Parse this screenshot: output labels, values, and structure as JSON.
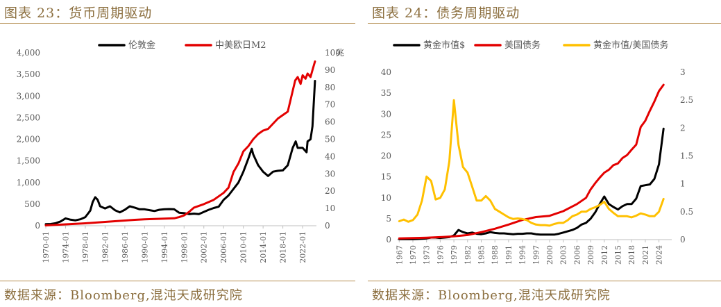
{
  "figures": [
    {
      "title": "图表 23：货币周期驱动",
      "source": "数据来源：Bloomberg,混沌天成研究院"
    },
    {
      "title": "图表 24：债务周期驱动",
      "source": "数据来源：Bloomberg,混沌天成研究院"
    }
  ],
  "chart_data": [
    {
      "type": "line",
      "title": "",
      "xlabel": "",
      "ylabel": "",
      "y2label": "",
      "xlim": [
        1970.0,
        2024.8
      ],
      "x_ticks": [
        "1970-01",
        "1974-01",
        "1978-01",
        "1982-01",
        "1986-01",
        "1990-01",
        "1994-01",
        "1998-01",
        "2002-01",
        "2006-01",
        "2010-01",
        "2014-01",
        "2018-01",
        "2022-01"
      ],
      "x_tick_values": [
        1970,
        1974,
        1978,
        1982,
        1986,
        1990,
        1994,
        1998,
        2002,
        2006,
        2010,
        2014,
        2018,
        2022
      ],
      "y_left": {
        "min": 0,
        "max": 4000,
        "ticks": [
          "0",
          "500",
          "1,000",
          "1,500",
          "2,000",
          "2,500",
          "3,000",
          "3,500",
          "4,000"
        ],
        "tick_values": [
          0,
          500,
          1000,
          1500,
          2000,
          2500,
          3000,
          3500,
          4000
        ]
      },
      "y_right": {
        "min": 0,
        "max": 100,
        "ticks": [
          "0",
          "10",
          "20",
          "30",
          "40",
          "50",
          "60",
          "70",
          "80",
          "90",
          "100"
        ],
        "tick_values": [
          0,
          10,
          20,
          30,
          40,
          50,
          60,
          70,
          80,
          90,
          100
        ],
        "unit": "兆"
      },
      "legend_position": "top",
      "grid": false,
      "series": [
        {
          "name": "伦敦金",
          "axis": "left",
          "color": "#000000",
          "x": [
            1970,
            1971,
            1972,
            1973,
            1974,
            1975,
            1976,
            1977,
            1978,
            1979,
            1979.5,
            1980,
            1980.5,
            1981,
            1982,
            1983,
            1984,
            1985,
            1986,
            1987,
            1988,
            1989,
            1990,
            1991,
            1992,
            1993,
            1994,
            1995,
            1996,
            1997,
            1998,
            1999,
            2000,
            2001,
            2002,
            2003,
            2004,
            2005,
            2006,
            2007,
            2008,
            2009,
            2010,
            2011,
            2011.7,
            2012,
            2013,
            2014,
            2015,
            2016,
            2017,
            2018,
            2019,
            2020,
            2020.6,
            2021,
            2022,
            2022.8,
            2023,
            2023.6,
            2024,
            2024.5
          ],
          "y": [
            35,
            40,
            60,
            100,
            170,
            140,
            125,
            150,
            200,
            350,
            550,
            660,
            600,
            450,
            400,
            450,
            360,
            310,
            370,
            450,
            420,
            380,
            380,
            360,
            340,
            370,
            380,
            385,
            380,
            300,
            290,
            270,
            280,
            270,
            320,
            370,
            410,
            440,
            600,
            700,
            850,
            1000,
            1250,
            1550,
            1780,
            1650,
            1400,
            1250,
            1150,
            1250,
            1270,
            1280,
            1400,
            1800,
            1950,
            1800,
            1800,
            1700,
            1950,
            2000,
            2300,
            3350
          ]
        },
        {
          "name": "中美欧日M2",
          "axis": "right",
          "color": "#e30000",
          "x": [
            1970,
            1972,
            1974,
            1976,
            1978,
            1980,
            1982,
            1984,
            1986,
            1988,
            1990,
            1992,
            1994,
            1996,
            1997,
            1998,
            1999,
            2000,
            2002,
            2004,
            2006,
            2007,
            2008,
            2009,
            2010,
            2011,
            2012,
            2013,
            2014,
            2015,
            2016,
            2017,
            2018,
            2019,
            2020,
            2020.5,
            2021,
            2021.6,
            2022,
            2022.6,
            2023,
            2023.6,
            2024,
            2024.5
          ],
          "y": [
            0.2,
            0.5,
            0.8,
            1.1,
            1.4,
            1.8,
            2.2,
            2.6,
            3.0,
            3.4,
            3.7,
            3.9,
            4.1,
            4.3,
            5.0,
            6.0,
            8.0,
            10.5,
            12.5,
            15.0,
            19.0,
            22.0,
            31.0,
            36.0,
            43.0,
            46.0,
            50.0,
            53.0,
            55.0,
            56.0,
            59.0,
            62.0,
            64.0,
            66.0,
            78.0,
            84.0,
            86.0,
            82.0,
            87.0,
            85.0,
            88.0,
            86.0,
            90.0,
            95.0
          ]
        }
      ]
    },
    {
      "type": "line",
      "title": "",
      "xlabel": "",
      "ylabel": "",
      "y2label": "",
      "xlim": [
        1966.5,
        2026.8
      ],
      "x_ticks": [
        "1967",
        "1970",
        "1973",
        "1976",
        "1979",
        "1982",
        "1985",
        "1988",
        "1991",
        "1994",
        "1997",
        "2000",
        "2003",
        "2006",
        "2009",
        "2012",
        "2015",
        "2018",
        "2021",
        "2024"
      ],
      "x_tick_values": [
        1967,
        1970,
        1973,
        1976,
        1979,
        1982,
        1985,
        1988,
        1991,
        1994,
        1997,
        2000,
        2003,
        2006,
        2009,
        2012,
        2015,
        2018,
        2021,
        2024
      ],
      "y_left": {
        "min": 0,
        "max": 40,
        "ticks": [
          "0",
          "5",
          "10",
          "15",
          "20",
          "25",
          "30",
          "35",
          "40"
        ],
        "tick_values": [
          0,
          5,
          10,
          15,
          20,
          25,
          30,
          35,
          40
        ]
      },
      "y_right": {
        "min": 0,
        "max": 3,
        "ticks": [
          "0",
          "0.5",
          "1",
          "1.5",
          "2",
          "2.5",
          "3"
        ],
        "tick_values": [
          0,
          0.5,
          1,
          1.5,
          2,
          2.5,
          3
        ]
      },
      "legend_position": "top",
      "grid": false,
      "series": [
        {
          "name": "黄金市值$",
          "axis": "left",
          "color": "#000000",
          "x": [
            1967,
            1968,
            1969,
            1970,
            1971,
            1972,
            1973,
            1974,
            1975,
            1976,
            1977,
            1978,
            1979,
            1980,
            1981,
            1982,
            1983,
            1984,
            1985,
            1986,
            1987,
            1988,
            1989,
            1990,
            1991,
            1992,
            1993,
            1994,
            1995,
            1996,
            1997,
            1998,
            1999,
            2000,
            2001,
            2002,
            2003,
            2004,
            2005,
            2006,
            2007,
            2008,
            2009,
            2010,
            2011,
            2012,
            2013,
            2014,
            2015,
            2016,
            2017,
            2018,
            2019,
            2020,
            2021,
            2022,
            2023,
            2024,
            2025
          ],
          "y": [
            0.1,
            0.1,
            0.1,
            0.1,
            0.15,
            0.2,
            0.3,
            0.5,
            0.5,
            0.4,
            0.5,
            0.6,
            1.0,
            2.3,
            1.8,
            1.5,
            1.7,
            1.4,
            1.3,
            1.5,
            1.8,
            1.6,
            1.5,
            1.5,
            1.4,
            1.3,
            1.4,
            1.4,
            1.5,
            1.5,
            1.3,
            1.2,
            1.2,
            1.2,
            1.2,
            1.4,
            1.7,
            2.0,
            2.3,
            2.8,
            3.6,
            4.0,
            5.0,
            6.5,
            8.5,
            10.3,
            8.5,
            7.8,
            7.2,
            8.0,
            8.5,
            8.5,
            9.8,
            12.8,
            13.0,
            13.2,
            14.5,
            18.0,
            26.5
          ]
        },
        {
          "name": "美国债务",
          "axis": "left",
          "color": "#e30000",
          "x": [
            1967,
            1970,
            1973,
            1976,
            1979,
            1982,
            1985,
            1988,
            1991,
            1994,
            1997,
            2000,
            2003,
            2006,
            2008,
            2009,
            2010,
            2011,
            2012,
            2013,
            2014,
            2015,
            2016,
            2017,
            2018,
            2019,
            2020,
            2021,
            2022,
            2023,
            2024,
            2025
          ],
          "y": [
            0.3,
            0.37,
            0.45,
            0.6,
            0.8,
            1.1,
            1.8,
            2.6,
            3.6,
            4.7,
            5.4,
            5.7,
            6.8,
            8.5,
            10.0,
            12.0,
            13.5,
            14.8,
            16.0,
            16.7,
            17.8,
            18.2,
            19.5,
            20.2,
            21.5,
            22.7,
            26.9,
            28.4,
            30.8,
            33.0,
            35.5,
            37.0
          ]
        },
        {
          "name": "黄金市值/美国债务",
          "axis": "right",
          "color": "#ffc000",
          "x": [
            1967,
            1968,
            1969,
            1970,
            1971,
            1972,
            1973,
            1974,
            1975,
            1976,
            1977,
            1978,
            1979,
            1980,
            1981,
            1982,
            1983,
            1984,
            1985,
            1986,
            1987,
            1988,
            1989,
            1990,
            1991,
            1992,
            1993,
            1994,
            1995,
            1996,
            1997,
            1998,
            1999,
            2000,
            2001,
            2002,
            2003,
            2004,
            2005,
            2006,
            2007,
            2008,
            2009,
            2010,
            2011,
            2012,
            2013,
            2014,
            2015,
            2016,
            2017,
            2018,
            2019,
            2020,
            2021,
            2022,
            2023,
            2024,
            2025
          ],
          "y": [
            0.33,
            0.36,
            0.32,
            0.35,
            0.45,
            0.7,
            1.13,
            1.05,
            0.72,
            0.75,
            0.9,
            1.4,
            2.5,
            1.7,
            1.3,
            1.2,
            0.95,
            0.7,
            0.7,
            0.78,
            0.7,
            0.55,
            0.5,
            0.45,
            0.4,
            0.37,
            0.38,
            0.37,
            0.35,
            0.3,
            0.27,
            0.26,
            0.26,
            0.25,
            0.28,
            0.3,
            0.3,
            0.35,
            0.42,
            0.45,
            0.5,
            0.5,
            0.55,
            0.58,
            0.62,
            0.68,
            0.55,
            0.48,
            0.42,
            0.42,
            0.42,
            0.4,
            0.43,
            0.47,
            0.45,
            0.42,
            0.42,
            0.5,
            0.73
          ]
        }
      ]
    }
  ]
}
